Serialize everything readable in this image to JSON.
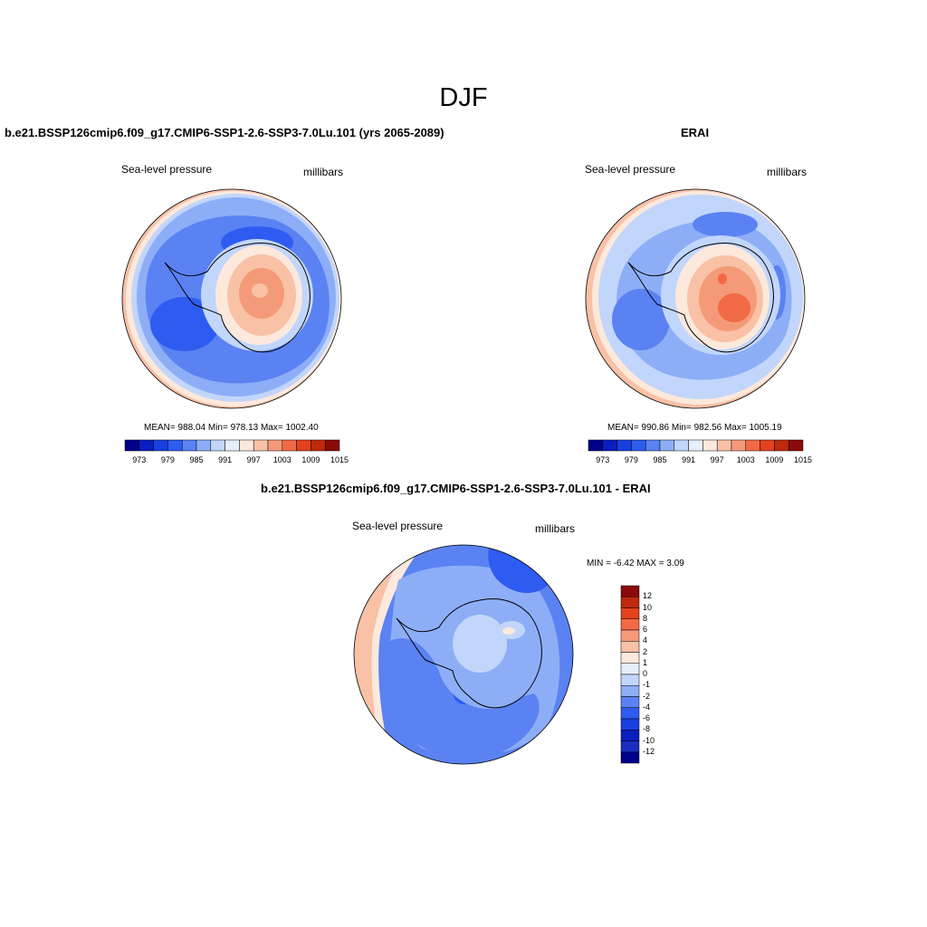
{
  "page": {
    "title": "DJF"
  },
  "panels": [
    {
      "id": "model",
      "title": "b.e21.BSSP126cmip6.f09_g17.CMIP6-SSP1-2.6-SSP3-7.0Lu.101 (yrs 2065-2089)",
      "left_label": "Sea-level pressure",
      "right_label": "millibars",
      "stats_text": "MEAN= 988.04  Min= 978.13  Max= 1002.40",
      "mean": 988.04,
      "min": 978.13,
      "max": 1002.4
    },
    {
      "id": "obs",
      "title": "ERAI",
      "left_label": "Sea-level pressure",
      "right_label": "millibars",
      "stats_text": "MEAN= 990.86  Min= 982.56  Max= 1005.19",
      "mean": 990.86,
      "min": 982.56,
      "max": 1005.19
    },
    {
      "id": "diff",
      "title": "b.e21.BSSP126cmip6.f09_g17.CMIP6-SSP1-2.6-SSP3-7.0Lu.101 - ERAI",
      "left_label": "Sea-level pressure",
      "right_label": "millibars",
      "stats_text": "MIN =  -6.42 MAX =   3.09",
      "min": -6.42,
      "max": 3.09
    }
  ],
  "colorbars": {
    "abs": {
      "colors": [
        "#00008b",
        "#0a1fbf",
        "#1a3fe0",
        "#2f5cf0",
        "#5b82f2",
        "#8daef7",
        "#c2d6fb",
        "#e6eefc",
        "#fde9dc",
        "#f9c1a6",
        "#f59a78",
        "#f26a45",
        "#e3421c",
        "#bf2a0e",
        "#8b0a0a"
      ],
      "tick_labels": [
        "973",
        "979",
        "985",
        "991",
        "997",
        "1003",
        "1009",
        "1015"
      ]
    },
    "diff": {
      "colors": [
        "#8b0a0a",
        "#bf2a0e",
        "#e3421c",
        "#f26a45",
        "#f59a78",
        "#f9c1a6",
        "#fde9dc",
        "#e6eefc",
        "#c2d6fb",
        "#8daef7",
        "#5b82f2",
        "#2f5cf0",
        "#1a3fe0",
        "#0a1fbf",
        "#1a2fc0",
        "#00008b"
      ],
      "tick_labels": [
        "12",
        "10",
        "8",
        "6",
        "4",
        "2",
        "1",
        "0",
        "-1",
        "-2",
        "-4",
        "-6",
        "-8",
        "-10",
        "-12"
      ]
    }
  },
  "map_colors": {
    "coastline": "#000000",
    "outline": "#000000"
  }
}
